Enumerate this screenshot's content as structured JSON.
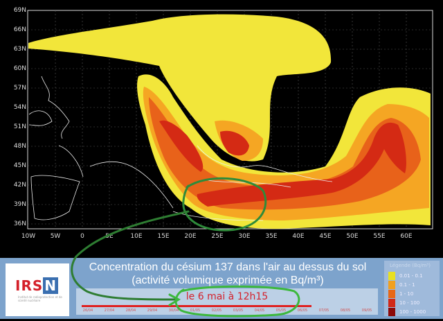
{
  "map": {
    "lat_labels": [
      "69N",
      "66N",
      "63N",
      "60N",
      "57N",
      "54N",
      "51N",
      "48N",
      "45N",
      "42N",
      "39N",
      "36N"
    ],
    "lon_labels": [
      "10W",
      "5W",
      "0",
      "5E",
      "10E",
      "15E",
      "20E",
      "25E",
      "30E",
      "35E",
      "40E",
      "45E",
      "50E",
      "55E",
      "60E"
    ],
    "plume_colors": {
      "low": "#f2e63a",
      "mid": "#f5a623",
      "high": "#e8621a",
      "very_high": "#d42a14",
      "max": "#8c0a0a"
    }
  },
  "panel": {
    "logo": {
      "name_a": "IRS",
      "name_b": "N",
      "subtitle": "Institut de radioprotection et de sûreté nucléaire"
    },
    "title_line1": "Concentration du césium 137 dans l'air au dessus du sol",
    "title_line2": "(activité volumique exprimée en Bq/m³)",
    "date": "le 6 mai  à 12h15",
    "timeline_progress_days": 10.5,
    "timeline_ticks": [
      "26/04",
      "27/04",
      "28/04",
      "29/04",
      "30/04",
      "01/05",
      "02/05",
      "03/05",
      "04/05",
      "05/05",
      "06/05",
      "07/05",
      "08/05",
      "09/05"
    ]
  },
  "legend": {
    "title": "Légende (Bq/m³)",
    "items": [
      {
        "label": "0.01 - 0.1",
        "color": "#e8e020"
      },
      {
        "label": "0.1 - 1",
        "color": "#f0a020"
      },
      {
        "label": "1 - 10",
        "color": "#e86818"
      },
      {
        "label": "10 - 100",
        "color": "#d02818"
      },
      {
        "label": "100 - 1000",
        "color": "#8c0a0a"
      }
    ]
  },
  "annotation": {
    "color": "#3cb83c"
  }
}
